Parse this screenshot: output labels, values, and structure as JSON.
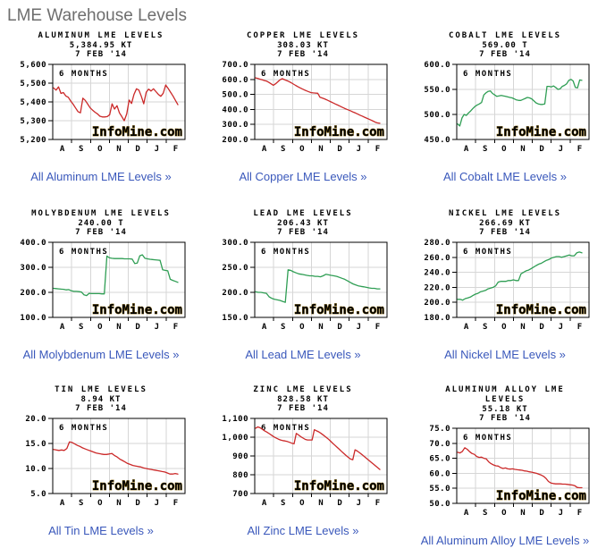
{
  "page": {
    "header": "LME Warehouse Levels"
  },
  "ui": {
    "range_label": "6 MONTHS",
    "watermark": "InfoMine.com",
    "x_tick_labels": [
      "A",
      "S",
      "O",
      "N",
      "D",
      "J",
      "F"
    ],
    "colors": {
      "red_series": "#cb2929",
      "green_series": "#2f9e54",
      "grid": "#d6d6d6",
      "plot_border": "#000000",
      "watermark_fill": "#f3b718",
      "watermark_stroke": "#8f6e14",
      "link": "#3a58bb",
      "header_text": "#6e6e6e"
    }
  },
  "chart_data": [
    {
      "type": "line",
      "title": "ALUMINUM LME LEVELS",
      "title_lines": [
        "ALUMINUM LME LEVELS"
      ],
      "value": "5,384.95 KT",
      "date": "7 FEB '14",
      "inner_label": "6 MONTHS",
      "series_color": "#cb2929",
      "ylim": [
        5200,
        5600
      ],
      "ytick_labels": [
        "5,600",
        "5,500",
        "5,400",
        "5,300",
        "5,200"
      ],
      "x_tick_labels": [
        "A",
        "S",
        "O",
        "N",
        "D",
        "J",
        "F"
      ],
      "values": [
        5475,
        5463,
        5480,
        5445,
        5450,
        5432,
        5425,
        5405,
        5388,
        5368,
        5348,
        5342,
        5420,
        5408,
        5388,
        5368,
        5356,
        5345,
        5336,
        5324,
        5320,
        5320,
        5322,
        5332,
        5390,
        5362,
        5380,
        5342,
        5322,
        5300,
        5336,
        5410,
        5392,
        5440,
        5470,
        5463,
        5430,
        5390,
        5452,
        5468,
        5458,
        5470,
        5455,
        5440,
        5430,
        5446,
        5490,
        5472,
        5452,
        5432,
        5408,
        5385
      ],
      "link_label": "All Aluminum LME Levels »"
    },
    {
      "type": "line",
      "title": "COPPER LME LEVELS",
      "title_lines": [
        "COPPER LME LEVELS"
      ],
      "value": "308.03 KT",
      "date": "7 FEB '14",
      "inner_label": "6 MONTHS",
      "series_color": "#cb2929",
      "ylim": [
        200,
        700
      ],
      "ytick_labels": [
        "700.0",
        "600.0",
        "500.0",
        "400.0",
        "300.0",
        "200.0"
      ],
      "x_tick_labels": [
        "A",
        "S",
        "O",
        "N",
        "D",
        "J",
        "F"
      ],
      "values": [
        610,
        606,
        601,
        597,
        592,
        588,
        580,
        570,
        561,
        571,
        584,
        597,
        605,
        598,
        592,
        586,
        578,
        569,
        560,
        552,
        544,
        537,
        530,
        523,
        517,
        512,
        510,
        509,
        508,
        481,
        476,
        471,
        464,
        457,
        450,
        443,
        436,
        429,
        422,
        415,
        408,
        401,
        395,
        389,
        382,
        376,
        369,
        362,
        356,
        349,
        342,
        336,
        329,
        322,
        315,
        310,
        308
      ],
      "link_label": "All Copper LME Levels »"
    },
    {
      "type": "line",
      "title": "COBALT LME LEVELS",
      "title_lines": [
        "COBALT LME LEVELS"
      ],
      "value": "569.00 T",
      "date": "7 FEB '14",
      "inner_label": "6 MONTHS",
      "series_color": "#2f9e54",
      "ylim": [
        450,
        600
      ],
      "ytick_labels": [
        "600.0",
        "550.0",
        "500.0",
        "450.0"
      ],
      "x_tick_labels": [
        "A",
        "S",
        "O",
        "N",
        "D",
        "J",
        "F"
      ],
      "values": [
        481,
        477,
        493,
        500,
        498,
        503,
        507,
        512,
        516,
        519,
        521,
        524,
        539,
        543,
        546,
        547,
        542,
        539,
        536,
        537,
        538,
        537,
        536,
        535,
        534,
        533,
        531,
        529,
        528,
        528,
        530,
        532,
        534,
        533,
        531,
        527,
        523,
        521,
        520,
        520,
        521,
        556,
        556,
        555,
        557,
        554,
        550,
        551,
        556,
        558,
        561,
        568,
        570,
        567,
        554,
        553,
        569,
        568
      ],
      "link_label": "All Cobalt LME Levels »"
    },
    {
      "type": "line",
      "title": "MOLYBDENUM LME LEVELS",
      "title_lines": [
        "MOLYBDENUM LME LEVELS"
      ],
      "value": "240.00 T",
      "date": "7 FEB '14",
      "inner_label": "6 MONTHS",
      "series_color": "#2f9e54",
      "ylim": [
        100,
        400
      ],
      "ytick_labels": [
        "400.0",
        "300.0",
        "200.0",
        "100.0"
      ],
      "x_tick_labels": [
        "A",
        "S",
        "O",
        "N",
        "D",
        "J",
        "F"
      ],
      "values": [
        216,
        215,
        214,
        213,
        212,
        210,
        211,
        206,
        204,
        204,
        203,
        201,
        190,
        187,
        196,
        195,
        195,
        195,
        195,
        194,
        194,
        345,
        338,
        336,
        335,
        335,
        335,
        335,
        334,
        334,
        334,
        333,
        315,
        317,
        346,
        350,
        336,
        334,
        332,
        331,
        330,
        329,
        328,
        290,
        288,
        286,
        252,
        248,
        244,
        240
      ],
      "link_label": "All Molybdenum LME Levels »"
    },
    {
      "type": "line",
      "title": "LEAD LME LEVELS",
      "title_lines": [
        "LEAD LME LEVELS"
      ],
      "value": "206.43 KT",
      "date": "7 FEB '14",
      "inner_label": "6 MONTHS",
      "series_color": "#2f9e54",
      "ylim": [
        150,
        300
      ],
      "ytick_labels": [
        "300.0",
        "250.0",
        "200.0",
        "150.0"
      ],
      "x_tick_labels": [
        "A",
        "S",
        "O",
        "N",
        "D",
        "J",
        "F"
      ],
      "values": [
        201,
        200,
        200,
        199,
        198,
        191,
        188,
        186,
        185,
        184,
        182,
        180,
        245,
        244,
        241,
        239,
        237,
        236,
        235,
        234,
        233,
        233,
        232,
        232,
        231,
        233,
        236,
        235,
        234,
        233,
        232,
        230,
        228,
        226,
        223,
        220,
        217,
        215,
        213,
        212,
        211,
        210,
        209,
        208,
        208,
        207,
        207
      ],
      "link_label": "All Lead LME Levels »"
    },
    {
      "type": "line",
      "title": "NICKEL LME LEVELS",
      "title_lines": [
        "NICKEL LME LEVELS"
      ],
      "value": "266.69 KT",
      "date": "7 FEB '14",
      "inner_label": "6 MONTHS",
      "series_color": "#2f9e54",
      "ylim": [
        180,
        280
      ],
      "ytick_labels": [
        "280.0",
        "260.0",
        "240.0",
        "220.0",
        "200.0",
        "180.0"
      ],
      "x_tick_labels": [
        "A",
        "S",
        "O",
        "N",
        "D",
        "J",
        "F"
      ],
      "values": [
        204,
        204,
        203,
        205,
        206,
        207,
        209,
        211,
        212,
        214,
        215,
        216,
        218,
        219,
        220,
        222,
        227,
        228,
        228,
        228,
        229,
        229,
        230,
        229,
        229,
        238,
        240,
        242,
        243,
        245,
        247,
        249,
        251,
        252,
        254,
        256,
        257,
        259,
        260,
        261,
        261,
        260,
        261,
        262,
        263,
        262,
        262,
        266,
        267,
        266
      ],
      "link_label": "All Nickel LME Levels »"
    },
    {
      "type": "line",
      "title": "TIN LME LEVELS",
      "title_lines": [
        "TIN LME LEVELS"
      ],
      "value": "8.94 KT",
      "date": "7 FEB '14",
      "inner_label": "6 MONTHS",
      "series_color": "#cb2929",
      "ylim": [
        5,
        20
      ],
      "ytick_labels": [
        "20.0",
        "15.0",
        "10.0",
        "5.0"
      ],
      "x_tick_labels": [
        "A",
        "S",
        "O",
        "N",
        "D",
        "J",
        "F"
      ],
      "values": [
        13.8,
        13.7,
        13.6,
        13.7,
        13.6,
        14.0,
        15.3,
        15.2,
        14.9,
        14.6,
        14.4,
        14.1,
        13.9,
        13.7,
        13.5,
        13.3,
        13.1,
        13.0,
        12.9,
        12.8,
        12.8,
        12.9,
        13.0,
        12.6,
        12.3,
        11.9,
        11.6,
        11.3,
        11.0,
        10.8,
        10.6,
        10.5,
        10.4,
        10.3,
        10.1,
        10.0,
        9.9,
        9.8,
        9.7,
        9.6,
        9.5,
        9.4,
        9.3,
        9.1,
        8.9,
        8.9,
        9.0,
        8.9
      ],
      "link_label": "All Tin LME Levels »"
    },
    {
      "type": "line",
      "title": "ZINC LME LEVELS",
      "title_lines": [
        "ZINC LME LEVELS"
      ],
      "value": "828.58 KT",
      "date": "7 FEB '14",
      "inner_label": "6 MONTHS",
      "series_color": "#cb2929",
      "ylim": [
        700,
        1100
      ],
      "ytick_labels": [
        "1,100",
        "1,000",
        "900",
        "800",
        "700"
      ],
      "x_tick_labels": [
        "A",
        "S",
        "O",
        "N",
        "D",
        "J",
        "F"
      ],
      "values": [
        1048,
        1055,
        1050,
        1042,
        1034,
        1027,
        1019,
        1011,
        1003,
        996,
        990,
        985,
        982,
        980,
        977,
        973,
        968,
        965,
        1020,
        1012,
        1003,
        995,
        988,
        985,
        985,
        985,
        1040,
        1034,
        1028,
        1020,
        1011,
        1002,
        992,
        981,
        969,
        958,
        947,
        936,
        925,
        914,
        903,
        893,
        884,
        880,
        933,
        926,
        917,
        908,
        898,
        888,
        878,
        868,
        858,
        848,
        838,
        828
      ],
      "link_label": "All Zinc LME Levels »"
    },
    {
      "type": "line",
      "title": "ALUMINUM ALLOY LME LEVELS",
      "title_lines": [
        "ALUMINUM ALLOY LME",
        "LEVELS"
      ],
      "value": "55.18 KT",
      "date": "7 FEB '14",
      "inner_label": "6 MONTHS",
      "series_color": "#cb2929",
      "ylim": [
        50,
        75
      ],
      "ytick_labels": [
        "75.0",
        "70.0",
        "65.0",
        "60.0",
        "55.0",
        "50.0"
      ],
      "x_tick_labels": [
        "A",
        "S",
        "O",
        "N",
        "D",
        "J",
        "F"
      ],
      "values": [
        67.0,
        66.8,
        67.3,
        68.5,
        68.0,
        67.2,
        66.6,
        66.3,
        65.6,
        65.3,
        65.4,
        65.0,
        64.8,
        63.8,
        63.2,
        62.8,
        62.5,
        62.4,
        61.9,
        61.6,
        61.8,
        61.5,
        61.4,
        61.5,
        61.3,
        61.2,
        61.1,
        61.0,
        60.8,
        60.7,
        60.5,
        60.4,
        60.2,
        60.0,
        59.7,
        59.4,
        59.0,
        58.3,
        57.3,
        56.8,
        56.6,
        56.5,
        56.5,
        56.5,
        56.4,
        56.4,
        56.3,
        56.2,
        56.1,
        55.9,
        55.3,
        55.2,
        55.2
      ],
      "link_label": "All Aluminum Alloy LME Levels »"
    }
  ]
}
